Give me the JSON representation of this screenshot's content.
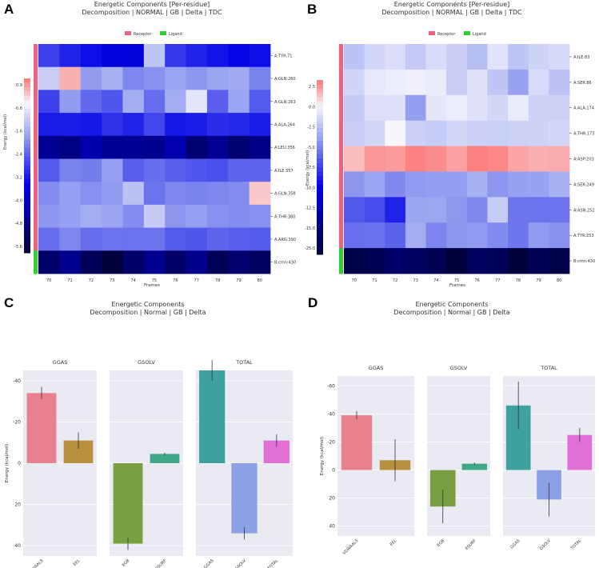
{
  "panels": {
    "A": "A",
    "B": "B",
    "C": "C",
    "D": "D"
  },
  "chart_data": [
    {
      "panel": "A",
      "type": "heatmap",
      "title": "Energetic Components [Per-residue]",
      "subtitle": "Decomposition | NORMAL | GB | Delta | TDC",
      "legend": [
        {
          "name": "Receptor",
          "color": "#f06080"
        },
        {
          "name": "Ligand",
          "color": "#30d030"
        }
      ],
      "xlabel": "Frames",
      "x": [
        "70",
        "71",
        "72",
        "73",
        "74",
        "75",
        "76",
        "77",
        "78",
        "79",
        "80"
      ],
      "rows": [
        "A:TYR:71",
        "A:GLN:260",
        "A:GLN:263",
        "A:ALA:264",
        "A:LEU:356",
        "A:ILE:357",
        "A:GLN:358",
        "A:THR:380",
        "A:ARG:390",
        "B:cmn:430"
      ],
      "row_groups": [
        "receptor",
        "receptor",
        "receptor",
        "receptor",
        "receptor",
        "receptor",
        "receptor",
        "receptor",
        "receptor",
        "ligand"
      ],
      "values": [
        [
          -4.0,
          -4.6,
          -5.0,
          -5.5,
          -5.6,
          -1.2,
          -4.2,
          -4.6,
          -4.9,
          -5.2,
          -5.0
        ],
        [
          -1.0,
          0.9,
          -2.2,
          -1.7,
          -2.6,
          -2.4,
          -2.0,
          -2.3,
          -2.0,
          -1.9,
          -2.7
        ],
        [
          -4.0,
          -2.2,
          -3.2,
          -3.6,
          -1.8,
          -3.1,
          -1.8,
          -0.4,
          -3.4,
          -2.0,
          -3.5
        ],
        [
          -4.7,
          -4.7,
          -4.8,
          -4.3,
          -4.6,
          -3.9,
          -4.8,
          -4.7,
          -4.4,
          -4.5,
          -4.7
        ],
        [
          -7.4,
          -7.8,
          -6.7,
          -7.3,
          -7.4,
          -7.5,
          -6.7,
          -8.2,
          -7.4,
          -8.2,
          -7.7
        ],
        [
          -3.5,
          -2.7,
          -2.8,
          -2.1,
          -3.4,
          -3.1,
          -3.4,
          -3.6,
          -3.7,
          -3.3,
          -3.3
        ],
        [
          -2.5,
          -2.1,
          -2.4,
          -2.2,
          -1.3,
          -3.0,
          -2.6,
          -2.7,
          -2.6,
          -2.5,
          0.6
        ],
        [
          -2.3,
          -2.1,
          -1.8,
          -2.0,
          -2.5,
          -1.1,
          -2.3,
          -2.1,
          -2.4,
          -2.5,
          -2.4
        ],
        [
          -3.1,
          -2.6,
          -3.1,
          -3.0,
          -3.0,
          -3.0,
          -3.5,
          -3.6,
          -3.3,
          -3.4,
          -3.5
        ],
        [
          -8.4,
          -7.5,
          -8.8,
          -9.6,
          -8.5,
          -7.5,
          -8.5,
          -7.6,
          -8.9,
          -8.3,
          -8.7
        ]
      ],
      "colorbar": {
        "label": "Energy (kcal/mol)",
        "ticks": [
          "0.9",
          "-0.6",
          "-1.6",
          "-2.4",
          "-3.2",
          "-4.0",
          "-4.8",
          "-5.6"
        ],
        "range": [
          1.5,
          -9.6
        ]
      }
    },
    {
      "panel": "B",
      "type": "heatmap",
      "title": "Energetic Components [Per-residue]",
      "subtitle": "Decomposition | NORMAL | GB | Delta | TDC",
      "legend": [
        {
          "name": "Receptor",
          "color": "#f06080"
        },
        {
          "name": "Ligand",
          "color": "#30d030"
        }
      ],
      "xlabel": "Frames",
      "x": [
        "70",
        "71",
        "72",
        "73",
        "74",
        "75",
        "76",
        "77",
        "78",
        "79",
        "80"
      ],
      "rows": [
        "A:ILE:83",
        "A:SER:86",
        "A:ALA:174",
        "A:THR:173",
        "A:ASP:203",
        "A:SER:249",
        "A:ASN:252",
        "A:TYR:253",
        "B:cmn:430"
      ],
      "row_groups": [
        "receptor",
        "receptor",
        "receptor",
        "receptor",
        "receptor",
        "receptor",
        "receptor",
        "receptor",
        "ligand"
      ],
      "values": [
        [
          -3.5,
          -2.2,
          -1.7,
          -3.1,
          -1.8,
          -2.8,
          -3.9,
          -1.3,
          -3.4,
          -2.5,
          -2.0
        ],
        [
          -2.3,
          -0.9,
          -0.6,
          -0.4,
          -0.7,
          -2.8,
          -1.4,
          -3.4,
          -5.7,
          -1.9,
          -3.6
        ],
        [
          -3.1,
          -1.5,
          -1.5,
          -6.0,
          -1.0,
          -0.6,
          -1.4,
          -2.1,
          -0.7,
          -2.4,
          -2.5
        ],
        [
          -2.8,
          -2.2,
          0.0,
          -2.6,
          -2.9,
          -2.1,
          -2.6,
          -2.7,
          -2.5,
          -2.4,
          -2.1
        ],
        [
          2.2,
          3.7,
          3.5,
          4.7,
          4.1,
          3.3,
          5.8,
          4.3,
          3.2,
          2.7,
          2.9
        ],
        [
          -6.5,
          -5.6,
          -7.2,
          -6.2,
          -6.0,
          -6.0,
          -4.8,
          -6.5,
          -5.9,
          -5.7,
          -4.8
        ],
        [
          -10.0,
          -10.6,
          -13.0,
          -5.6,
          -5.5,
          -6.4,
          -7.2,
          -3.0,
          -8.3,
          -8.4,
          -8.4
        ],
        [
          -8.6,
          -8.5,
          -9.4,
          -5.1,
          -7.5,
          -6.5,
          -6.2,
          -7.1,
          -8.3,
          -6.2,
          -6.7
        ],
        [
          -26.0,
          -25.5,
          -23.8,
          -24.4,
          -25.3,
          -27.8,
          -24.5,
          -25.0,
          -27.0,
          -25.3,
          -26.3
        ]
      ],
      "colorbar": {
        "label": "Energy (kcal/mol)",
        "ticks": [
          "2.5",
          "0.0",
          "-2.5",
          "-5.0",
          "-7.5",
          "-10.0",
          "-12.5",
          "-15.0",
          "-25.0"
        ],
        "range": [
          4.5,
          -27.0
        ]
      }
    },
    {
      "panel": "C",
      "type": "bar",
      "title": "Energetic Components",
      "subtitle": "Decomposition | Normal | GB | Delta",
      "ylabel": "Energy (kcal/mol)",
      "ylim": [
        -45,
        45
      ],
      "inverted": true,
      "yticks": [
        "-40",
        "-20",
        "0",
        "20",
        "40"
      ],
      "subplots": [
        {
          "title": "GGAS",
          "bars": [
            {
              "label": "VDWAALS",
              "value": -34,
              "err": 3,
              "color": "#e8808e"
            },
            {
              "label": "EEL",
              "value": -11,
              "err": 4,
              "color": "#b89040"
            }
          ]
        },
        {
          "title": "GSOLV",
          "bars": [
            {
              "label": "EGB",
              "value": 39,
              "err": 3,
              "color": "#78a040"
            },
            {
              "label": "ESURF",
              "value": -4.5,
              "err": 0.7,
              "color": "#40a888"
            }
          ]
        },
        {
          "title": "TOTAL",
          "bars": [
            {
              "label": "GGAS",
              "value": -45,
              "err": 5,
              "color": "#3fa0a0"
            },
            {
              "label": "GSOLV",
              "value": 34,
              "err": 3,
              "color": "#8ca0e6"
            },
            {
              "label": "TOTAL",
              "value": -11,
              "err": 3,
              "color": "#e070d6"
            }
          ]
        }
      ]
    },
    {
      "panel": "D",
      "type": "bar",
      "title": "Energetic Components",
      "subtitle": "Decomposition | Normal | GB | Delta",
      "ylabel": "Energy (kcal/mol)",
      "ylim": [
        -67,
        47
      ],
      "inverted": true,
      "yticks": [
        "-60",
        "-40",
        "-20",
        "0",
        "20",
        "40"
      ],
      "subplots": [
        {
          "title": "GGAS",
          "bars": [
            {
              "label": "VDWAALS",
              "value": -39,
              "err": 3,
              "color": "#e8808e"
            },
            {
              "label": "EEL",
              "value": -7,
              "err": 15,
              "color": "#b89040"
            }
          ]
        },
        {
          "title": "GSOLV",
          "bars": [
            {
              "label": "EGB",
              "value": 26,
              "err": 12,
              "color": "#78a040"
            },
            {
              "label": "ESURF",
              "value": -4.5,
              "err": 0.8,
              "color": "#40a888"
            }
          ]
        },
        {
          "title": "TOTAL",
          "bars": [
            {
              "label": "GGAS",
              "value": -46,
              "err": 17,
              "color": "#3fa0a0"
            },
            {
              "label": "GSOLV",
              "value": 21,
              "err": 12,
              "color": "#8ca0e6"
            },
            {
              "label": "TOTAL",
              "value": -25,
              "err": 5,
              "color": "#e070d6"
            }
          ]
        }
      ]
    }
  ]
}
